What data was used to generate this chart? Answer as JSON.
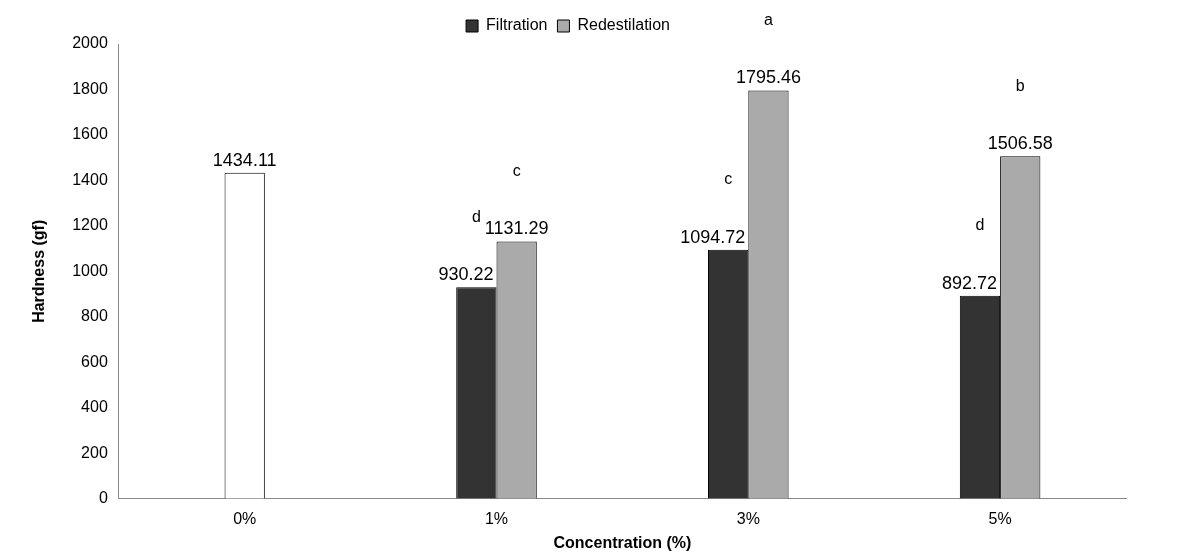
{
  "chart_data": {
    "type": "bar",
    "xlabel": "Concentration (%)",
    "ylabel": "Hardness (gf)",
    "categories": [
      "0%",
      "1%",
      "3%",
      "5%"
    ],
    "series": [
      {
        "color": "#ffffff",
        "values": [
          1434.11,
          null,
          null,
          null
        ]
      },
      {
        "name": "Filtration",
        "color": "#333333",
        "values": [
          null,
          930.22,
          1094.72,
          892.72
        ]
      },
      {
        "name": "Redestilation",
        "color": "#aaaaaa",
        "values": [
          null,
          1131.29,
          1795.46,
          1506.58
        ]
      }
    ],
    "ylim": [
      0,
      2000
    ],
    "yticks": [
      0,
      200,
      400,
      600,
      800,
      1000,
      1200,
      1400,
      1600,
      1800,
      2000
    ],
    "grid": false,
    "legend": "top",
    "data_labels": true,
    "annotations": [
      "d",
      "c",
      "c",
      "a",
      "d",
      "b"
    ]
  }
}
